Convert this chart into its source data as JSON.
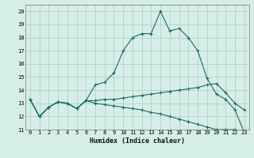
{
  "xlabel": "Humidex (Indice chaleur)",
  "bg_color": "#d6eee8",
  "grid_color": "#aaccc4",
  "line_color": "#1a6b60",
  "xlim": [
    -0.5,
    23.5
  ],
  "ylim": [
    11,
    20.5
  ],
  "xticks": [
    0,
    1,
    2,
    3,
    4,
    5,
    6,
    7,
    8,
    9,
    10,
    11,
    12,
    13,
    14,
    15,
    16,
    17,
    18,
    19,
    20,
    21,
    22,
    23
  ],
  "yticks": [
    11,
    12,
    13,
    14,
    15,
    16,
    17,
    18,
    19,
    20
  ],
  "curve1_x": [
    0,
    1,
    2,
    3,
    4,
    5,
    6,
    7,
    8,
    9,
    10,
    11,
    12,
    13,
    14,
    15,
    16,
    17,
    18,
    19,
    20,
    21,
    22,
    23
  ],
  "curve1_y": [
    13.3,
    12.0,
    12.7,
    13.1,
    13.0,
    12.6,
    13.2,
    14.4,
    14.6,
    15.3,
    17.0,
    18.0,
    18.3,
    18.3,
    20.0,
    18.5,
    18.7,
    18.0,
    17.0,
    14.9,
    13.7,
    13.3,
    12.5,
    10.8
  ],
  "curve2_x": [
    0,
    1,
    2,
    3,
    4,
    5,
    6,
    7,
    8,
    9,
    10,
    11,
    12,
    13,
    14,
    15,
    16,
    17,
    18,
    19,
    20,
    21,
    22,
    23
  ],
  "curve2_y": [
    13.3,
    12.0,
    12.7,
    13.1,
    13.0,
    12.6,
    13.2,
    13.2,
    13.3,
    13.3,
    13.4,
    13.5,
    13.6,
    13.7,
    13.8,
    13.9,
    14.0,
    14.1,
    14.2,
    14.4,
    14.5,
    13.8,
    13.0,
    12.5
  ],
  "curve3_x": [
    0,
    1,
    2,
    3,
    4,
    5,
    6,
    7,
    8,
    9,
    10,
    11,
    12,
    13,
    14,
    15,
    16,
    17,
    18,
    19,
    20,
    21,
    22,
    23
  ],
  "curve3_y": [
    13.3,
    12.0,
    12.7,
    13.1,
    13.0,
    12.6,
    13.2,
    13.0,
    12.9,
    12.8,
    12.7,
    12.6,
    12.5,
    12.3,
    12.2,
    12.0,
    11.8,
    11.6,
    11.4,
    11.2,
    11.0,
    11.0,
    11.0,
    10.8
  ],
  "tick_fontsize": 5.0,
  "xlabel_fontsize": 6.0
}
